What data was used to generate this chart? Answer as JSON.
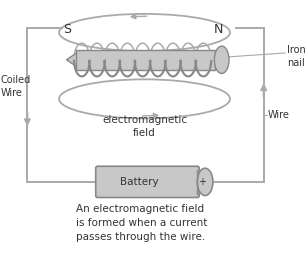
{
  "bg_color": "#ffffff",
  "line_color": "#aaaaaa",
  "fill_color": "#c8c8c8",
  "dark_color": "#888888",
  "text_color": "#333333",
  "caption": "An electromagnetic field\nis formed when a current\npasses through the wire.",
  "label_S": "S",
  "label_N": "N",
  "label_iron_nail": "Iron\nnail",
  "label_coiled_wire": "Coiled\nWire",
  "label_em_field": "electromagnetic\nfield",
  "label_battery": "Battery",
  "label_plus": "+",
  "label_wire": "Wire",
  "figsize": [
    3.08,
    2.7
  ],
  "dpi": 100
}
